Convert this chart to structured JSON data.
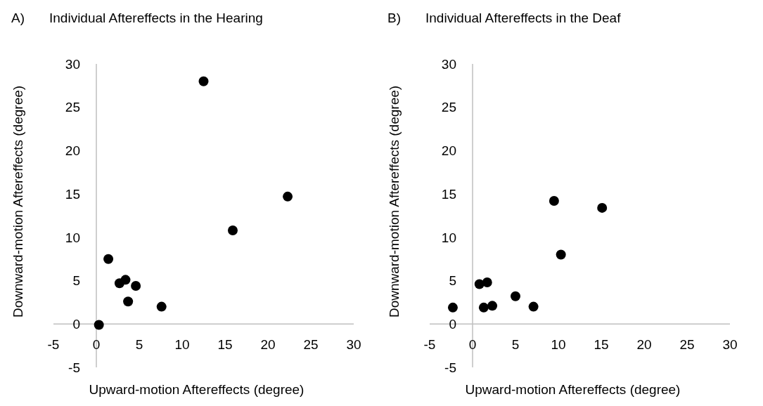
{
  "chart_data": [
    {
      "type": "scatter",
      "title": "Individual Aftereffects in the Hearing",
      "annotations": [
        "A)"
      ],
      "xlabel": "Upward-motion Aftereffects (degree)",
      "ylabel": "Downward-motion Aftereffects (degree)",
      "x": [
        0.3,
        1.4,
        2.7,
        3.4,
        4.6,
        3.7,
        7.6,
        12.5,
        15.9,
        22.3
      ],
      "values": [
        -0.1,
        7.5,
        4.7,
        5.1,
        4.4,
        2.6,
        2.0,
        28.0,
        10.8,
        14.7
      ],
      "color": "#000000",
      "marker": "circle",
      "xlim": [
        -5,
        30
      ],
      "ylim": [
        -5,
        30
      ],
      "xticks": [
        -5,
        0,
        5,
        10,
        15,
        20,
        25,
        30
      ],
      "yticks": [
        -5,
        0,
        5,
        10,
        15,
        20,
        25,
        30
      ],
      "grid": false
    },
    {
      "type": "scatter",
      "title": "Individual Aftereffects in the Deaf",
      "annotations": [
        "B)"
      ],
      "xlabel": "Upward-motion Aftereffects (degree)",
      "ylabel": "Downward-motion Aftereffects (degree)",
      "x": [
        -2.3,
        0.8,
        1.7,
        1.3,
        2.3,
        5.0,
        7.1,
        9.5,
        10.3,
        15.1
      ],
      "values": [
        1.9,
        4.6,
        4.8,
        1.9,
        2.1,
        3.2,
        2.0,
        14.2,
        8.0,
        13.4
      ],
      "color": "#000000",
      "marker": "circle",
      "xlim": [
        -5,
        30
      ],
      "ylim": [
        -5,
        30
      ],
      "xticks": [
        -5,
        0,
        5,
        10,
        15,
        20,
        25,
        30
      ],
      "yticks": [
        -5,
        0,
        5,
        10,
        15,
        20,
        25,
        30
      ],
      "grid": false
    }
  ]
}
